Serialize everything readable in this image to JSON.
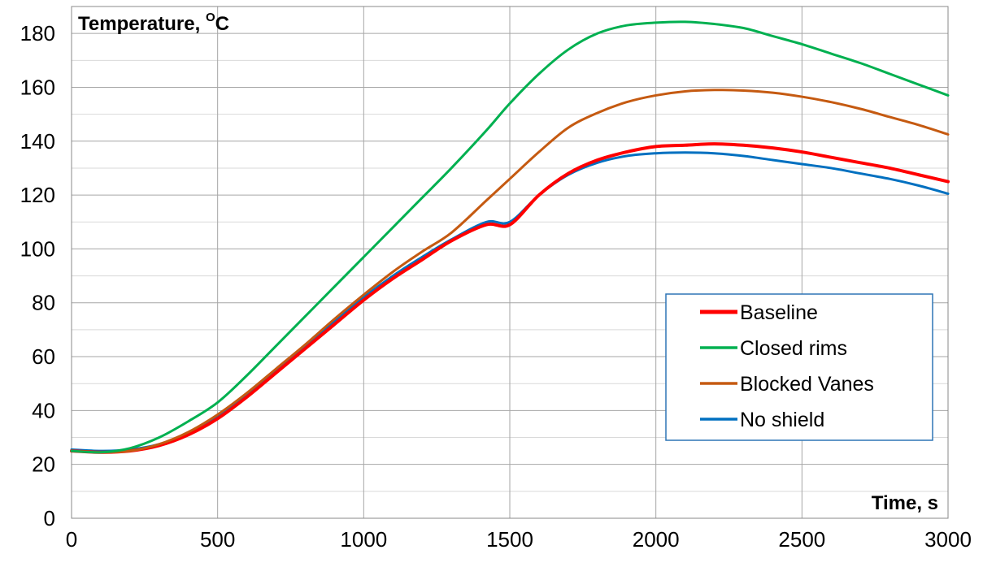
{
  "chart_data": {
    "type": "line",
    "xlabel": "Time, s",
    "ylabel_prefix": "Temperature, ",
    "ylabel_sup": "O",
    "ylabel_suffix": "C",
    "xlim": [
      0,
      3000
    ],
    "ylim": [
      0,
      190
    ],
    "x_ticks": [
      0,
      500,
      1000,
      1500,
      2000,
      2500,
      3000
    ],
    "y_ticks": [
      0,
      20,
      40,
      60,
      80,
      100,
      120,
      140,
      160,
      180
    ],
    "grid": true,
    "legend_position": "lower-right",
    "series": [
      {
        "name": "Baseline",
        "color": "#ff0000",
        "x": [
          0,
          100,
          200,
          300,
          400,
          500,
          600,
          700,
          800,
          900,
          1000,
          1100,
          1200,
          1300,
          1420,
          1500,
          1600,
          1700,
          1800,
          1900,
          2000,
          2100,
          2200,
          2300,
          2400,
          2500,
          2600,
          2700,
          2800,
          2900,
          3000
        ],
        "y": [
          25,
          24.5,
          25,
          27,
          31,
          37,
          45,
          54,
          63,
          72,
          81,
          89,
          96,
          103,
          109,
          109,
          120,
          128,
          133,
          136,
          138,
          138.5,
          139,
          138.5,
          137.5,
          136,
          134,
          132,
          130,
          127.5,
          125
        ]
      },
      {
        "name": "Closed rims",
        "color": "#00b050",
        "x": [
          0,
          100,
          200,
          300,
          400,
          500,
          600,
          700,
          800,
          900,
          1000,
          1100,
          1200,
          1300,
          1420,
          1500,
          1600,
          1700,
          1800,
          1900,
          2000,
          2100,
          2200,
          2300,
          2400,
          2500,
          2600,
          2700,
          2800,
          2900,
          3000
        ],
        "y": [
          25,
          24.5,
          26,
          30,
          36,
          43,
          53,
          64,
          75,
          86,
          97,
          108,
          119,
          130,
          144,
          154,
          165,
          174,
          180,
          183,
          184,
          184.3,
          183.5,
          182,
          179,
          176,
          172.5,
          169,
          165,
          161,
          157
        ]
      },
      {
        "name": "Blocked Vanes",
        "color": "#c55a11",
        "x": [
          0,
          100,
          200,
          300,
          400,
          500,
          600,
          700,
          800,
          900,
          1000,
          1100,
          1200,
          1300,
          1420,
          1500,
          1600,
          1700,
          1800,
          1900,
          2000,
          2100,
          2200,
          2300,
          2400,
          2500,
          2600,
          2700,
          2800,
          2900,
          3000
        ],
        "y": [
          25,
          24.5,
          25,
          27.5,
          32,
          38.5,
          46.5,
          55.5,
          64.5,
          74,
          83,
          91.5,
          99,
          106,
          118,
          126,
          136,
          145,
          150.5,
          154.5,
          157,
          158.5,
          159,
          158.8,
          158,
          156.5,
          154.5,
          152,
          149,
          146,
          142.5
        ]
      },
      {
        "name": "No shield",
        "color": "#0070c0",
        "x": [
          0,
          100,
          200,
          300,
          400,
          500,
          600,
          700,
          800,
          900,
          1000,
          1100,
          1200,
          1300,
          1420,
          1500,
          1600,
          1700,
          1800,
          1900,
          2000,
          2100,
          2200,
          2300,
          2400,
          2500,
          2600,
          2700,
          2800,
          2900,
          3000
        ],
        "y": [
          25.5,
          25,
          25.5,
          27.5,
          31.5,
          38,
          46,
          55,
          64,
          73,
          82,
          90,
          97,
          103.5,
          110,
          110,
          120,
          127.5,
          132,
          134.5,
          135.5,
          135.8,
          135.5,
          134.5,
          133,
          131.5,
          130,
          128,
          126,
          123.5,
          120.5
        ]
      }
    ]
  }
}
